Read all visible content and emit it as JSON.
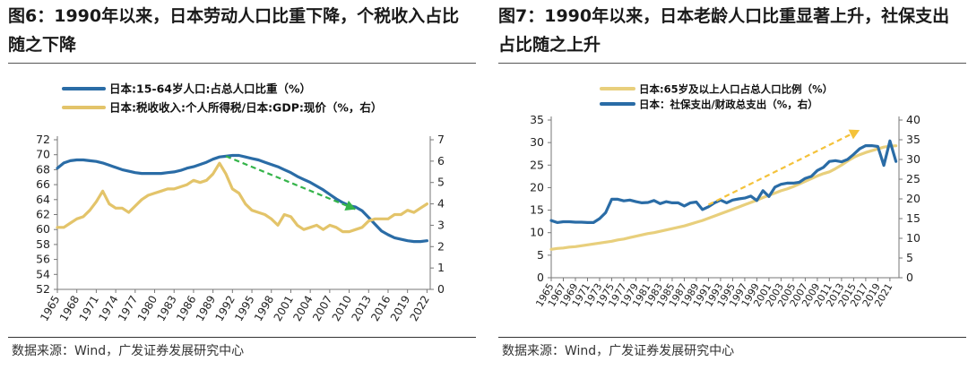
{
  "charts": [
    {
      "title": "图6：1990年以来，日本劳动人口比重下降，个税收入占比随之下降",
      "source": "数据来源：Wind，广发证券发展研究中心"
    },
    {
      "title": "图7：1990年以来，日本老龄人口比重显著上升，社保支出占比随之上升",
      "source": "数据来源：Wind，广发证券发展研究中心"
    }
  ],
  "chart_data": [
    {
      "type": "line",
      "title": "图6：1990年以来，日本劳动人口比重下降，个税收入占比随之下降",
      "x_tick_labels": [
        "1965",
        "1968",
        "1971",
        "1974",
        "1977",
        "1980",
        "1983",
        "1986",
        "1989",
        "1992",
        "1995",
        "1998",
        "2001",
        "2004",
        "2007",
        "2010",
        "2013",
        "2016",
        "2019",
        "2022"
      ],
      "y_left": {
        "min": 52,
        "max": 72,
        "step": 2
      },
      "y_right": {
        "min": 0,
        "max": 7,
        "step": 1
      },
      "legend_position": "top-left",
      "annotation": "green dashed arrow, 1991 to 2011, downward",
      "series": [
        {
          "name": "日本:15-64岁人口:占总人口比重（%）",
          "axis": "left",
          "color": "#2a6ca6",
          "x": [
            1965,
            1966,
            1967,
            1968,
            1969,
            1970,
            1971,
            1972,
            1973,
            1974,
            1975,
            1976,
            1977,
            1978,
            1979,
            1980,
            1981,
            1982,
            1983,
            1984,
            1985,
            1986,
            1987,
            1988,
            1989,
            1990,
            1991,
            1992,
            1993,
            1994,
            1995,
            1996,
            1997,
            1998,
            1999,
            2000,
            2001,
            2002,
            2003,
            2004,
            2005,
            2006,
            2007,
            2008,
            2009,
            2010,
            2011,
            2012,
            2013,
            2014,
            2015,
            2016,
            2017,
            2018,
            2019,
            2020,
            2021,
            2022
          ],
          "values": [
            68.2,
            68.9,
            69.2,
            69.3,
            69.3,
            69.2,
            69.1,
            68.9,
            68.6,
            68.3,
            68.0,
            67.8,
            67.6,
            67.5,
            67.5,
            67.5,
            67.5,
            67.6,
            67.7,
            67.9,
            68.2,
            68.4,
            68.7,
            69.0,
            69.4,
            69.7,
            69.8,
            69.9,
            69.9,
            69.7,
            69.5,
            69.3,
            69.0,
            68.7,
            68.4,
            68.0,
            67.6,
            67.1,
            66.7,
            66.3,
            65.8,
            65.3,
            64.7,
            64.1,
            63.6,
            63.2,
            63.0,
            62.5,
            61.6,
            60.7,
            59.8,
            59.3,
            58.9,
            58.7,
            58.5,
            58.4,
            58.4,
            58.5
          ]
        },
        {
          "name": "日本:税收收入:个人所得税/日本:GDP:现价（%，右）",
          "axis": "right",
          "color": "#e3c46a",
          "x": [
            1965,
            1966,
            1967,
            1968,
            1969,
            1970,
            1971,
            1972,
            1973,
            1974,
            1975,
            1976,
            1977,
            1978,
            1979,
            1980,
            1981,
            1982,
            1983,
            1984,
            1985,
            1986,
            1987,
            1988,
            1989,
            1990,
            1991,
            1992,
            1993,
            1994,
            1995,
            1996,
            1997,
            1998,
            1999,
            2000,
            2001,
            2002,
            2003,
            2004,
            2005,
            2006,
            2007,
            2008,
            2009,
            2010,
            2011,
            2012,
            2013,
            2014,
            2015,
            2016,
            2017,
            2018,
            2019,
            2020,
            2021,
            2022
          ],
          "values": [
            2.9,
            2.9,
            3.1,
            3.3,
            3.4,
            3.7,
            4.1,
            4.6,
            4.0,
            3.8,
            3.8,
            3.6,
            3.9,
            4.2,
            4.4,
            4.5,
            4.6,
            4.7,
            4.7,
            4.8,
            4.9,
            5.1,
            5.0,
            5.1,
            5.4,
            5.9,
            5.4,
            4.7,
            4.5,
            4.0,
            3.7,
            3.6,
            3.5,
            3.3,
            3.0,
            3.5,
            3.4,
            3.0,
            2.8,
            2.9,
            3.0,
            2.8,
            3.0,
            2.9,
            2.7,
            2.7,
            2.8,
            2.9,
            3.2,
            3.3,
            3.3,
            3.3,
            3.5,
            3.5,
            3.7,
            3.6,
            3.8,
            4.0
          ]
        }
      ]
    },
    {
      "type": "line",
      "title": "图7：1990年以来，日本老龄人口比重显著上升，社保支出占比随之上升",
      "x_tick_labels": [
        "1965",
        "1967",
        "1969",
        "1971",
        "1973",
        "1975",
        "1977",
        "1979",
        "1981",
        "1983",
        "1985",
        "1987",
        "1989",
        "1991",
        "1993",
        "1995",
        "1997",
        "1999",
        "2001",
        "2003",
        "2005",
        "2007",
        "2009",
        "2011",
        "2013",
        "2015",
        "2017",
        "2019",
        "2021"
      ],
      "y_left": {
        "min": 0,
        "max": 35,
        "step": 5
      },
      "y_right": {
        "min": 0,
        "max": 40,
        "step": 5
      },
      "legend_position": "top",
      "annotation": "yellow dashed arrow, 1991 to 2016, upward",
      "series": [
        {
          "name": "日本:65岁及以上人口占总人口比例（%）",
          "axis": "left",
          "color": "#e8cf7c",
          "x": [
            1965,
            1966,
            1967,
            1968,
            1969,
            1970,
            1971,
            1972,
            1973,
            1974,
            1975,
            1976,
            1977,
            1978,
            1979,
            1980,
            1981,
            1982,
            1983,
            1984,
            1985,
            1986,
            1987,
            1988,
            1989,
            1990,
            1991,
            1992,
            1993,
            1994,
            1995,
            1996,
            1997,
            1998,
            1999,
            2000,
            2001,
            2002,
            2003,
            2004,
            2005,
            2006,
            2007,
            2008,
            2009,
            2010,
            2011,
            2012,
            2013,
            2014,
            2015,
            2016,
            2017,
            2018,
            2019,
            2020,
            2021,
            2022
          ],
          "values": [
            6.3,
            6.5,
            6.6,
            6.8,
            6.9,
            7.1,
            7.3,
            7.5,
            7.7,
            7.9,
            8.1,
            8.4,
            8.6,
            8.9,
            9.2,
            9.5,
            9.8,
            10.0,
            10.3,
            10.6,
            10.9,
            11.2,
            11.5,
            11.9,
            12.3,
            12.7,
            13.2,
            13.7,
            14.2,
            14.7,
            15.2,
            15.7,
            16.2,
            16.7,
            17.2,
            17.8,
            18.3,
            18.8,
            19.3,
            19.7,
            20.2,
            20.8,
            21.4,
            22.0,
            22.6,
            23.1,
            23.5,
            24.2,
            25.0,
            25.9,
            26.7,
            27.3,
            27.8,
            28.2,
            28.6,
            29.0,
            29.2,
            29.3
          ]
        },
        {
          "name": "日本：社保支出/财政总支出（%，右）",
          "axis": "right",
          "color": "#2a6ca6",
          "x": [
            1965,
            1966,
            1967,
            1968,
            1969,
            1970,
            1971,
            1972,
            1973,
            1974,
            1975,
            1976,
            1977,
            1978,
            1979,
            1980,
            1981,
            1982,
            1983,
            1984,
            1985,
            1986,
            1987,
            1988,
            1989,
            1990,
            1991,
            1992,
            1993,
            1994,
            1995,
            1996,
            1997,
            1998,
            1999,
            2000,
            2001,
            2002,
            2003,
            2004,
            2005,
            2006,
            2007,
            2008,
            2009,
            2010,
            2011,
            2012,
            2013,
            2014,
            2015,
            2016,
            2017,
            2018,
            2019,
            2020,
            2021,
            2022
          ],
          "values": [
            14.5,
            14.0,
            14.2,
            14.2,
            14.1,
            14.1,
            14.0,
            14.0,
            15.0,
            16.5,
            19.9,
            19.9,
            19.5,
            19.7,
            19.3,
            19.0,
            19.1,
            19.6,
            18.8,
            19.3,
            19.0,
            19.0,
            18.2,
            19.0,
            19.2,
            17.3,
            18.0,
            19.0,
            19.7,
            19.0,
            19.7,
            20.0,
            20.2,
            20.7,
            19.6,
            22.1,
            20.6,
            23.0,
            23.7,
            24.0,
            24.0,
            24.2,
            25.2,
            25.7,
            27.2,
            28.0,
            29.5,
            29.7,
            29.4,
            30.0,
            31.3,
            32.7,
            33.5,
            33.5,
            33.3,
            28.5,
            34.7,
            29.5
          ]
        }
      ]
    }
  ]
}
